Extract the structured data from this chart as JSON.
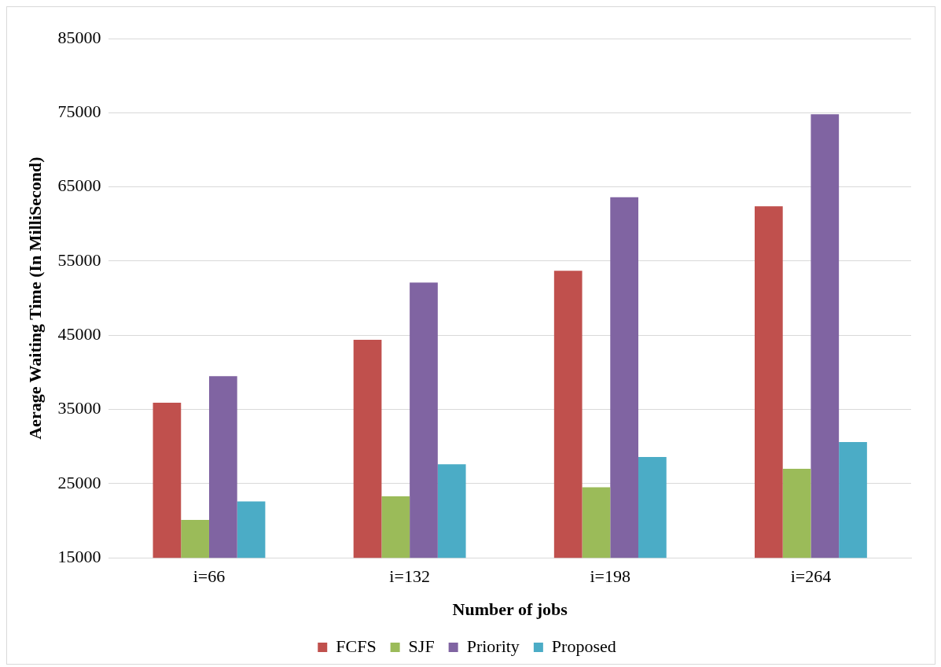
{
  "chart_data": {
    "type": "bar",
    "xlabel": "Number of jobs",
    "ylabel": "Aerage Waiting Time (In MilliSecond)",
    "categories": [
      "i=66",
      "i=132",
      "i=198",
      "i=264"
    ],
    "series": [
      {
        "name": "FCFS",
        "color": "#c0504d",
        "values": [
          35900,
          44400,
          53700,
          62400
        ]
      },
      {
        "name": "SJF",
        "color": "#9bbb59",
        "values": [
          20100,
          23300,
          24500,
          27000
        ]
      },
      {
        "name": "Priority",
        "color": "#8064a2",
        "values": [
          39500,
          52100,
          63600,
          74800
        ]
      },
      {
        "name": "Proposed",
        "color": "#4bacc6",
        "values": [
          22600,
          27600,
          28600,
          30600
        ]
      }
    ],
    "ylim": [
      15000,
      85000
    ],
    "yticks": [
      15000,
      25000,
      35000,
      45000,
      55000,
      65000,
      75000,
      85000
    ],
    "grid": "y",
    "legend": "bottom"
  }
}
